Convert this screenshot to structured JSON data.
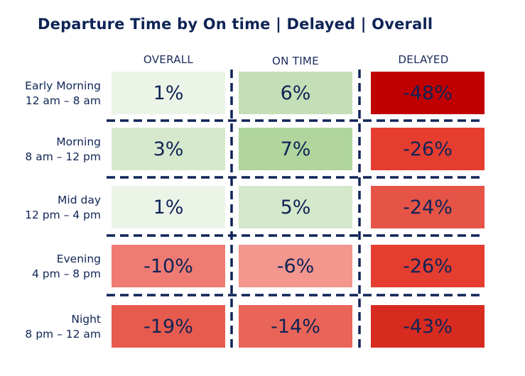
{
  "chart_data": {
    "type": "heatmap",
    "title": "Departure Time by On time | Delayed | Overall",
    "columns": [
      "OVERALL",
      "ON TIME",
      "DELAYED"
    ],
    "rows": [
      {
        "name": "Early Morning",
        "range": "12 am – 8 am",
        "values": [
          "1%",
          "6%",
          "-48%"
        ],
        "colors": [
          "#ecf4e8",
          "#c4dfb7",
          "#c00000"
        ]
      },
      {
        "name": "Morning",
        "range": "8 am – 12 pm",
        "values": [
          "3%",
          "7%",
          "-26%"
        ],
        "colors": [
          "#d6e9cd",
          "#b0d59d",
          "#e53d2f"
        ]
      },
      {
        "name": "Mid day",
        "range": "12 pm – 4 pm",
        "values": [
          "1%",
          "5%",
          "-24%"
        ],
        "colors": [
          "#ecf4e8",
          "#d4e8cb",
          "#e55446"
        ]
      },
      {
        "name": "Evening",
        "range": "4 pm – 8 pm",
        "values": [
          "-10%",
          "-6%",
          "-26%"
        ],
        "colors": [
          "#ef7b73",
          "#f3968e",
          "#e53d2f"
        ]
      },
      {
        "name": "Night",
        "range": "8 pm – 12 am",
        "values": [
          "-19%",
          "-14%",
          "-43%"
        ],
        "colors": [
          "#e75b4f",
          "#ea6559",
          "#d72b20"
        ]
      }
    ]
  }
}
